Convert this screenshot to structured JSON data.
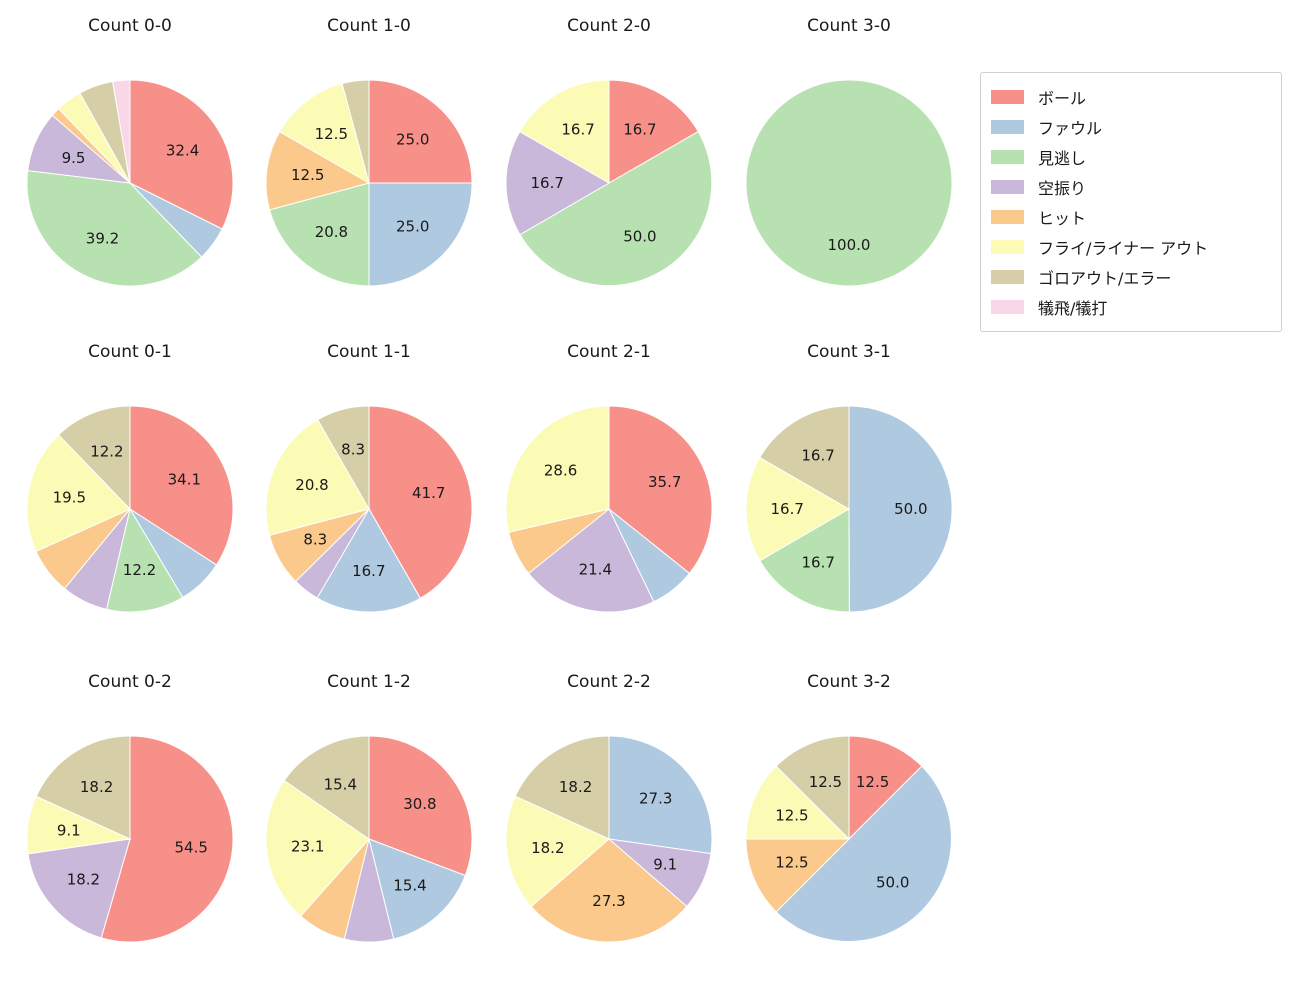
{
  "page": {
    "background": "#ffffff"
  },
  "legend": {
    "items": [
      {
        "label": "ボール",
        "color": "#F8908A"
      },
      {
        "label": "ファウル",
        "color": "#AFC9E1"
      },
      {
        "label": "見逃し",
        "color": "#B7E1B0"
      },
      {
        "label": "空振り",
        "color": "#C9B8D9"
      },
      {
        "label": "ヒット",
        "color": "#FAC98B"
      },
      {
        "label": "フライ/ライナー アウト",
        "color": "#FCFBB5"
      },
      {
        "label": "ゴロアウト/エラー",
        "color": "#D6CEA6"
      },
      {
        "label": "犠飛/犠打",
        "color": "#FAD6E9"
      }
    ]
  },
  "chart_data": {
    "type": "pie",
    "categories": [
      "ボール",
      "ファウル",
      "見逃し",
      "空振り",
      "ヒット",
      "フライ/ライナー アウト",
      "ゴロアウト/エラー",
      "犠飛/犠打"
    ],
    "value_unit": "percent",
    "start_angle": 90,
    "direction": "clockwise",
    "label_threshold": 8,
    "label_distance": 0.6,
    "legend_position": "upper right",
    "grid": {
      "rows": 3,
      "cols": 4
    },
    "charts": [
      {
        "title": "Count 0-0",
        "values": [
          32.4,
          5.4,
          39.2,
          9.5,
          1.4,
          4.1,
          5.4,
          2.7
        ]
      },
      {
        "title": "Count 1-0",
        "values": [
          25.0,
          25.0,
          20.8,
          0,
          12.5,
          12.5,
          4.2,
          0
        ]
      },
      {
        "title": "Count 2-0",
        "values": [
          16.7,
          0,
          50.0,
          16.7,
          0,
          16.7,
          0,
          0
        ]
      },
      {
        "title": "Count 3-0",
        "values": [
          0,
          0,
          100.0,
          0,
          0,
          0,
          0,
          0
        ]
      },
      {
        "title": "Count 0-1",
        "values": [
          34.1,
          7.3,
          12.2,
          7.3,
          7.3,
          19.5,
          12.2,
          0
        ]
      },
      {
        "title": "Count 1-1",
        "values": [
          41.7,
          16.7,
          0,
          4.2,
          8.3,
          20.8,
          8.3,
          0
        ]
      },
      {
        "title": "Count 2-1",
        "values": [
          35.7,
          7.1,
          0,
          21.4,
          7.1,
          28.6,
          0,
          0
        ]
      },
      {
        "title": "Count 3-1",
        "values": [
          0,
          50.0,
          16.7,
          0,
          0,
          16.7,
          16.7,
          0
        ]
      },
      {
        "title": "Count 0-2",
        "values": [
          54.5,
          0,
          0,
          18.2,
          0,
          9.1,
          18.2,
          0
        ]
      },
      {
        "title": "Count 1-2",
        "values": [
          30.8,
          15.4,
          0,
          7.7,
          7.7,
          23.1,
          15.4,
          0
        ]
      },
      {
        "title": "Count 2-2",
        "values": [
          0,
          27.3,
          0,
          9.1,
          27.3,
          18.2,
          18.2,
          0
        ]
      },
      {
        "title": "Count 3-2",
        "values": [
          12.5,
          50.0,
          0,
          0,
          12.5,
          12.5,
          12.5,
          0
        ]
      }
    ]
  }
}
